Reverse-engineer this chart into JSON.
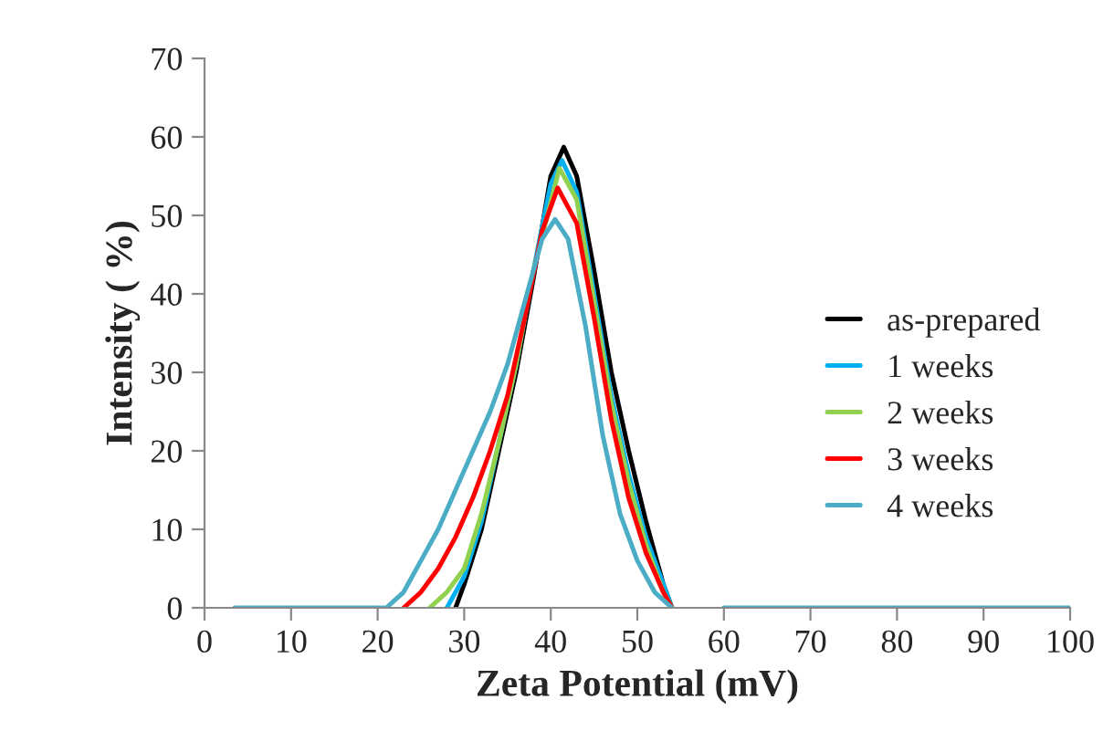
{
  "chart_data": {
    "type": "line",
    "xlabel": "Zeta Potential (mV)",
    "ylabel": "Intensity ( %)",
    "xlim": [
      0,
      100
    ],
    "xticks": [
      0,
      10,
      20,
      30,
      40,
      50,
      60,
      70,
      80,
      90,
      100
    ],
    "ylim": [
      0,
      70
    ],
    "yticks": [
      0,
      10,
      20,
      30,
      40,
      50,
      60,
      70
    ],
    "grid": false,
    "legend": "right",
    "marker": "none",
    "line_style": "solid",
    "series": [
      {
        "name": "as-prepared",
        "color": "#000000",
        "x": [
          29,
          30,
          32,
          34,
          36,
          38,
          40,
          41.5,
          43,
          45,
          47,
          49,
          51,
          53,
          54
        ],
        "values": [
          0,
          3,
          10,
          20,
          30,
          42,
          55,
          58.7,
          55,
          43,
          30,
          20,
          11,
          3,
          0
        ]
      },
      {
        "name": "1 weeks",
        "color": "#00b0f0",
        "x": [
          28,
          30,
          32,
          34,
          36,
          38,
          40,
          41.3,
          43,
          45,
          47,
          49,
          51,
          53,
          54
        ],
        "values": [
          0,
          4,
          11,
          21,
          31,
          43,
          54,
          57,
          53,
          40,
          27,
          17,
          9,
          3,
          0
        ]
      },
      {
        "name": "2 weeks",
        "color": "#92d050",
        "x": [
          26,
          28,
          30,
          32,
          34,
          36,
          38,
          41,
          43,
          45,
          47,
          49,
          51,
          53,
          54
        ],
        "values": [
          0,
          2,
          5,
          12,
          21,
          31,
          43,
          56,
          52,
          39,
          26,
          16,
          8,
          2,
          0
        ]
      },
      {
        "name": "3 weeks",
        "color": "#ff0000",
        "x": [
          23,
          25,
          27,
          29,
          31,
          33,
          35,
          37,
          39,
          40.8,
          43,
          45,
          47,
          49,
          51,
          53,
          54
        ],
        "values": [
          0,
          2,
          5,
          9,
          14,
          20,
          27,
          37,
          48,
          53.5,
          49,
          37,
          24,
          14,
          7,
          2,
          0
        ]
      },
      {
        "name": "4 weeks",
        "color": "#4bacc6",
        "x": [
          3.5,
          21,
          23,
          25,
          27,
          29,
          31,
          33,
          35,
          37,
          39,
          40.5,
          42,
          44,
          46,
          48,
          50,
          52,
          54,
          57,
          60,
          100
        ],
        "values": [
          0,
          0,
          2,
          6,
          10,
          15,
          20,
          25,
          31,
          39,
          47,
          49.5,
          47,
          36,
          22,
          12,
          6,
          2,
          0,
          null,
          0,
          0
        ]
      }
    ]
  }
}
